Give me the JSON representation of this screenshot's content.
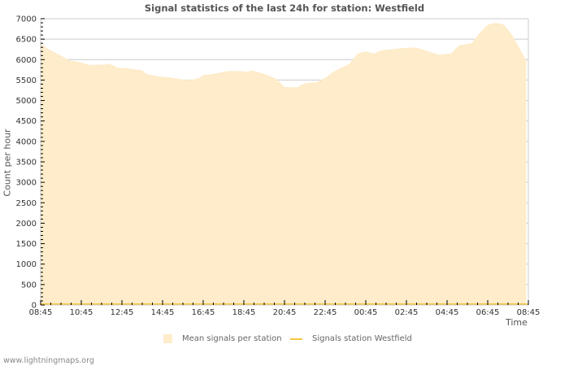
{
  "chart_data": {
    "type": "area",
    "title": "Signal statistics of the last 24h for station: Westfield",
    "xlabel": "Time",
    "ylabel": "Count per hour",
    "ylim": [
      0,
      7000
    ],
    "yticks": [
      0,
      500,
      1000,
      1500,
      2000,
      2500,
      3000,
      3500,
      4000,
      4500,
      5000,
      5500,
      6000,
      6500,
      7000
    ],
    "xticks": [
      "08:45",
      "10:45",
      "12:45",
      "14:45",
      "16:45",
      "18:45",
      "20:45",
      "22:45",
      "00:45",
      "02:45",
      "04:45",
      "06:45",
      "08:45"
    ],
    "grid": true,
    "legend_position": "bottom",
    "colors": {
      "mean_fill": "#feecca",
      "station_line": "#f5c842",
      "grid": "#cccccc",
      "axis_text": "#333333"
    },
    "series": [
      {
        "name": "Mean signals per station",
        "kind": "area",
        "x_hours_from_start": [
          0,
          0.4,
          1.0,
          1.4,
          2.0,
          2.4,
          3.2,
          3.4,
          3.8,
          4.4,
          5.0,
          5.2,
          5.8,
          6.4,
          7.0,
          7.4,
          7.8,
          8.0,
          8.4,
          8.8,
          9.2,
          9.8,
          10.2,
          10.4,
          11.0,
          11.6,
          12.0,
          12.6,
          13.0,
          13.6,
          14.0,
          14.4,
          14.8,
          15.2,
          15.6,
          16.0,
          16.4,
          16.8,
          17.6,
          18.2,
          18.6,
          19.2,
          19.6,
          20.2,
          20.6,
          21.2,
          21.6,
          22.0,
          22.4,
          22.8,
          23.2,
          23.6,
          23.9
        ],
        "values": [
          6400,
          6250,
          6100,
          5980,
          5930,
          5870,
          5880,
          5900,
          5800,
          5780,
          5740,
          5650,
          5590,
          5560,
          5510,
          5500,
          5550,
          5620,
          5640,
          5680,
          5720,
          5720,
          5700,
          5740,
          5650,
          5530,
          5330,
          5320,
          5420,
          5450,
          5550,
          5700,
          5800,
          5900,
          6150,
          6200,
          6150,
          6230,
          6270,
          6300,
          6280,
          6180,
          6120,
          6150,
          6350,
          6400,
          6650,
          6850,
          6900,
          6850,
          6600,
          6250,
          5980
        ]
      },
      {
        "name": "Signals station Westfield",
        "kind": "line",
        "x_hours_from_start": [
          0,
          24
        ],
        "values": [
          0,
          0
        ]
      }
    ]
  },
  "header": {
    "title": "Signal statistics of the last 24h for station: Westfield"
  },
  "axes": {
    "x_label": "Time",
    "y_label": "Count per hour"
  },
  "legend": {
    "items": [
      {
        "label": "Mean signals per station"
      },
      {
        "label": "Signals station Westfield"
      }
    ]
  },
  "footer": {
    "credit": "www.lightningmaps.org"
  }
}
